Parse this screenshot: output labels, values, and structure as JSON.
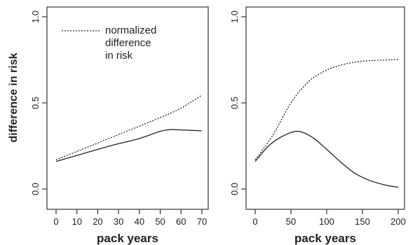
{
  "chart_data": [
    {
      "type": "line",
      "ylabel": "difference in risk",
      "xlabel": "pack years",
      "xlim": [
        0,
        70
      ],
      "ylim": [
        0,
        1
      ],
      "xticks": [
        "0",
        "10",
        "20",
        "30",
        "40",
        "50",
        "60",
        "70"
      ],
      "xtick_values": [
        0,
        10,
        20,
        30,
        40,
        50,
        60,
        70
      ],
      "yticks": [
        "0.0",
        "0.5",
        "1.0"
      ],
      "ytick_values": [
        0,
        0.5,
        1.0
      ],
      "legend": {
        "placement": "top-left",
        "lines": [
          "normalized",
          "difference",
          "in risk"
        ]
      },
      "series": [
        {
          "style": "dotted",
          "x": [
            0,
            10,
            20,
            30,
            40,
            50,
            60,
            70
          ],
          "y": [
            0.17,
            0.218,
            0.267,
            0.316,
            0.365,
            0.415,
            0.47,
            0.545
          ]
        },
        {
          "style": "solid",
          "x": [
            0,
            10,
            20,
            30,
            40,
            50,
            55,
            60,
            70
          ],
          "y": [
            0.16,
            0.195,
            0.23,
            0.263,
            0.293,
            0.335,
            0.345,
            0.343,
            0.338
          ]
        }
      ]
    },
    {
      "type": "line",
      "ylabel": "",
      "xlabel": "pack years",
      "xlim": [
        0,
        200
      ],
      "ylim": [
        0,
        1
      ],
      "xticks": [
        "0",
        "50",
        "100",
        "150",
        "200"
      ],
      "xtick_values": [
        0,
        50,
        100,
        150,
        200
      ],
      "yticks": [
        "0.0",
        "0.5",
        "1.0"
      ],
      "ytick_values": [
        0,
        0.5,
        1.0
      ],
      "series": [
        {
          "style": "dotted",
          "x": [
            0,
            25,
            50,
            75,
            100,
            125,
            150,
            175,
            200
          ],
          "y": [
            0.17,
            0.315,
            0.5,
            0.625,
            0.69,
            0.725,
            0.742,
            0.748,
            0.752
          ]
        },
        {
          "style": "solid",
          "x": [
            0,
            20,
            40,
            60,
            80,
            100,
            120,
            140,
            160,
            180,
            200
          ],
          "y": [
            0.16,
            0.255,
            0.31,
            0.335,
            0.3,
            0.23,
            0.155,
            0.09,
            0.05,
            0.025,
            0.01
          ]
        }
      ]
    }
  ]
}
